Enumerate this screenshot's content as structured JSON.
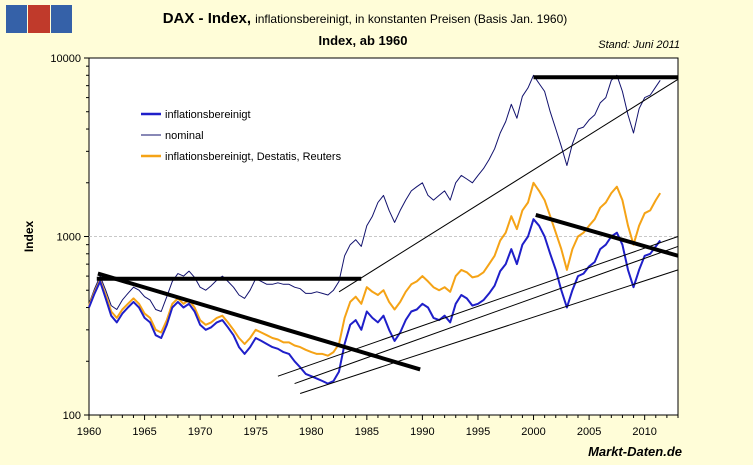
{
  "chart_data": {
    "type": "line",
    "title_bold": "DAX - Index,",
    "title_rest": "inflationsbereinigt, in konstanten Preisen (Basis Jan. 1960)",
    "subtitle": "Index, ab 1960",
    "stand": "Stand: Juni 2011",
    "footer": "Markt-Daten.de",
    "ylabel": "Index",
    "xlabel": "",
    "yscale": "log",
    "ylim": [
      100,
      10000
    ],
    "xlim": [
      1960,
      2013
    ],
    "yticks": [
      {
        "value": 100,
        "label": "100"
      },
      {
        "value": 1000,
        "label": "1000"
      },
      {
        "value": 10000,
        "label": "10000"
      }
    ],
    "xticks": [
      1960,
      1965,
      1970,
      1975,
      1980,
      1985,
      1990,
      1995,
      2000,
      2005,
      2010
    ],
    "colors": {
      "real": "#1f1fc9",
      "nominal": "#12126e",
      "destatis": "#f5a316",
      "trend": "#000000",
      "grid": "#c8c8c8"
    },
    "series": [
      {
        "name": "inflationsbereinigt",
        "key": "real",
        "x": [
          1960,
          1960.5,
          1961,
          1961.5,
          1962,
          1962.5,
          1963,
          1963.5,
          1964,
          1964.5,
          1965,
          1965.5,
          1966,
          1966.5,
          1967,
          1967.5,
          1968,
          1968.5,
          1969,
          1969.5,
          1970,
          1970.5,
          1971,
          1971.5,
          1972,
          1972.5,
          1973,
          1973.5,
          1974,
          1974.5,
          1975,
          1975.5,
          1976,
          1976.5,
          1977,
          1977.5,
          1978,
          1978.5,
          1979,
          1979.5,
          1980,
          1980.5,
          1981,
          1981.5,
          1982,
          1982.5,
          1983,
          1983.5,
          1984,
          1984.5,
          1985,
          1985.5,
          1986,
          1986.5,
          1987,
          1987.5,
          1988,
          1988.5,
          1989,
          1989.5,
          1990,
          1990.5,
          1991,
          1991.5,
          1992,
          1992.5,
          1993,
          1993.5,
          1994,
          1994.5,
          1995,
          1995.5,
          1996,
          1996.5,
          1997,
          1997.5,
          1998,
          1998.5,
          1999,
          1999.5,
          2000,
          2000.5,
          2001,
          2001.5,
          2002,
          2002.5,
          2003,
          2003.5,
          2004,
          2004.5,
          2005,
          2005.5,
          2006,
          2006.5,
          2007,
          2007.5,
          2008,
          2008.5,
          2009,
          2009.5,
          2010,
          2010.5,
          2011,
          2011.4
        ],
        "values": [
          400,
          480,
          560,
          450,
          360,
          330,
          370,
          400,
          430,
          400,
          350,
          330,
          280,
          270,
          320,
          400,
          430,
          400,
          420,
          380,
          320,
          300,
          310,
          330,
          340,
          310,
          280,
          240,
          220,
          240,
          270,
          260,
          250,
          240,
          235,
          225,
          220,
          200,
          185,
          170,
          165,
          160,
          155,
          150,
          155,
          175,
          250,
          320,
          340,
          300,
          380,
          350,
          330,
          360,
          300,
          260,
          290,
          340,
          380,
          390,
          420,
          400,
          350,
          340,
          360,
          330,
          420,
          470,
          450,
          410,
          420,
          440,
          480,
          530,
          640,
          700,
          850,
          700,
          900,
          1000,
          1250,
          1150,
          1000,
          800,
          650,
          500,
          400,
          500,
          600,
          620,
          680,
          720,
          850,
          900,
          1000,
          1050,
          900,
          650,
          520,
          650,
          780,
          800,
          880,
          950
        ]
      },
      {
        "name": "nominal",
        "key": "nominal",
        "x": [
          1960,
          1960.5,
          1961,
          1961.5,
          1962,
          1962.5,
          1963,
          1963.5,
          1964,
          1964.5,
          1965,
          1965.5,
          1966,
          1966.5,
          1967,
          1967.5,
          1968,
          1968.5,
          1969,
          1969.5,
          1970,
          1970.5,
          1971,
          1971.5,
          1972,
          1972.5,
          1973,
          1973.5,
          1974,
          1974.5,
          1975,
          1975.5,
          1976,
          1976.5,
          1977,
          1977.5,
          1978,
          1978.5,
          1979,
          1979.5,
          1980,
          1980.5,
          1981,
          1981.5,
          1982,
          1982.5,
          1983,
          1983.5,
          1984,
          1984.5,
          1985,
          1985.5,
          1986,
          1986.5,
          1987,
          1987.5,
          1988,
          1988.5,
          1989,
          1989.5,
          1990,
          1990.5,
          1991,
          1991.5,
          1992,
          1992.5,
          1993,
          1993.5,
          1994,
          1994.5,
          1995,
          1995.5,
          1996,
          1996.5,
          1997,
          1997.5,
          1998,
          1998.5,
          1999,
          1999.5,
          2000,
          2000.5,
          2001,
          2001.5,
          2002,
          2002.5,
          2003,
          2003.5,
          2004,
          2004.5,
          2005,
          2005.5,
          2006,
          2006.5,
          2007,
          2007.5,
          2008,
          2008.5,
          2009,
          2009.5,
          2010,
          2010.5,
          2011,
          2011.4
        ],
        "values": [
          420,
          510,
          600,
          500,
          410,
          390,
          440,
          480,
          520,
          500,
          460,
          440,
          390,
          380,
          460,
          560,
          620,
          600,
          640,
          590,
          520,
          500,
          530,
          570,
          600,
          560,
          520,
          470,
          450,
          500,
          580,
          560,
          540,
          540,
          550,
          540,
          540,
          520,
          510,
          480,
          480,
          490,
          480,
          470,
          500,
          560,
          780,
          900,
          960,
          880,
          1150,
          1300,
          1550,
          1700,
          1400,
          1200,
          1400,
          1600,
          1800,
          1900,
          2000,
          1700,
          1600,
          1700,
          1800,
          1600,
          2000,
          2200,
          2100,
          2000,
          2200,
          2400,
          2700,
          3100,
          3800,
          4400,
          5500,
          4600,
          6100,
          6800,
          8000,
          7200,
          6500,
          5000,
          4000,
          3200,
          2500,
          3300,
          4000,
          4100,
          4500,
          4800,
          5600,
          6000,
          7500,
          8000,
          6500,
          4800,
          3800,
          5200,
          6000,
          6200,
          6900,
          7500
        ]
      },
      {
        "name": "inflationsbereinigt, Destatis, Reuters",
        "key": "destatis",
        "x": [
          1960,
          1960.5,
          1961,
          1961.5,
          1962,
          1962.5,
          1963,
          1963.5,
          1964,
          1964.5,
          1965,
          1965.5,
          1966,
          1966.5,
          1967,
          1967.5,
          1968,
          1968.5,
          1969,
          1969.5,
          1970,
          1970.5,
          1971,
          1971.5,
          1972,
          1972.5,
          1973,
          1973.5,
          1974,
          1974.5,
          1975,
          1975.5,
          1976,
          1976.5,
          1977,
          1977.5,
          1978,
          1978.5,
          1979,
          1979.5,
          1980,
          1980.5,
          1981,
          1981.5,
          1982,
          1982.5,
          1983,
          1983.5,
          1984,
          1984.5,
          1985,
          1985.5,
          1986,
          1986.5,
          1987,
          1987.5,
          1988,
          1988.5,
          1989,
          1989.5,
          1990,
          1990.5,
          1991,
          1991.5,
          1992,
          1992.5,
          1993,
          1993.5,
          1994,
          1994.5,
          1995,
          1995.5,
          1996,
          1996.5,
          1997,
          1997.5,
          1998,
          1998.5,
          1999,
          1999.5,
          2000,
          2000.5,
          2001,
          2001.5,
          2002,
          2002.5,
          2003,
          2003.5,
          2004,
          2004.5,
          2005,
          2005.5,
          2006,
          2006.5,
          2007,
          2007.5,
          2008,
          2008.5,
          2009,
          2009.5,
          2010,
          2010.5,
          2011,
          2011.4
        ],
        "values": [
          410,
          490,
          570,
          470,
          380,
          350,
          390,
          420,
          450,
          420,
          370,
          350,
          300,
          290,
          340,
          420,
          450,
          420,
          440,
          400,
          340,
          320,
          330,
          350,
          360,
          330,
          300,
          270,
          250,
          270,
          300,
          290,
          280,
          270,
          265,
          255,
          255,
          245,
          240,
          232,
          225,
          220,
          220,
          215,
          225,
          250,
          350,
          430,
          460,
          420,
          520,
          490,
          470,
          500,
          430,
          390,
          430,
          490,
          540,
          560,
          600,
          560,
          520,
          500,
          520,
          490,
          600,
          650,
          630,
          590,
          600,
          630,
          700,
          780,
          950,
          1050,
          1300,
          1100,
          1400,
          1550,
          2000,
          1800,
          1600,
          1300,
          1050,
          850,
          650,
          850,
          1000,
          1050,
          1150,
          1250,
          1450,
          1550,
          1750,
          1900,
          1600,
          1150,
          900,
          1150,
          1350,
          1400,
          1600,
          1750
        ]
      }
    ],
    "trendlines": [
      {
        "id": "nominal-top-2000",
        "x": [
          2000,
          2013
        ],
        "values": [
          7800,
          7800
        ],
        "bold": true
      },
      {
        "id": "nominal-flat-1961",
        "x": [
          1960.7,
          1984.5
        ],
        "values": [
          580,
          580
        ],
        "bold": true
      },
      {
        "id": "real-down-1961",
        "x": [
          1960.8,
          1989.8
        ],
        "values": [
          620,
          180
        ],
        "bold": true
      },
      {
        "id": "real-down-2000",
        "x": [
          2000.2,
          2013
        ],
        "values": [
          1320,
          780
        ],
        "bold": true
      },
      {
        "id": "nominal-support",
        "x": [
          1982.5,
          2013
        ],
        "values": [
          490,
          7600
        ],
        "bold": false
      },
      {
        "id": "destatis-support",
        "x": [
          1977,
          2013
        ],
        "values": [
          165,
          1000
        ],
        "bold": false
      },
      {
        "id": "real-support-upper",
        "x": [
          1978.5,
          2013
        ],
        "values": [
          150,
          880
        ],
        "bold": false
      },
      {
        "id": "real-support-lower",
        "x": [
          1979,
          2013
        ],
        "values": [
          132,
          650
        ],
        "bold": false
      }
    ],
    "legend": {
      "position": "top-left"
    }
  }
}
